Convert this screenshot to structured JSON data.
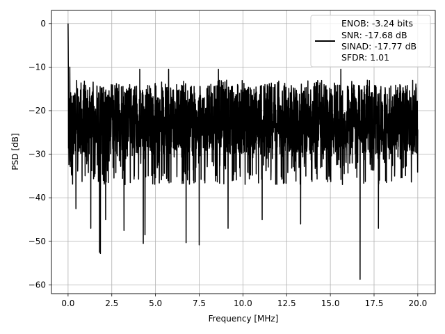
{
  "chart_data": {
    "type": "line",
    "title": "",
    "xlabel": "Frequency [MHz]",
    "ylabel": "PSD [dB]",
    "xlim": [
      -0.95,
      21.0
    ],
    "ylim": [
      -62.0,
      3.0
    ],
    "xticks": [
      0.0,
      2.5,
      5.0,
      7.5,
      10.0,
      12.5,
      15.0,
      17.5,
      20.0
    ],
    "xtick_labels": [
      "0.0",
      "2.5",
      "5.0",
      "7.5",
      "10.0",
      "12.5",
      "15.0",
      "17.5",
      "20.0"
    ],
    "yticks": [
      0,
      -10,
      -20,
      -30,
      -40,
      -50,
      -60
    ],
    "ytick_labels": [
      "0",
      "−10",
      "−20",
      "−30",
      "−40",
      "−50",
      "−60"
    ],
    "grid": true,
    "legend_position": "top-right",
    "legend_lines": [
      "ENOB: -3.24 bits",
      "SNR: -17.68 dB",
      "SINAD: -17.77 dB",
      "SFDR: 1.01"
    ],
    "series": [
      {
        "color": "#000000",
        "x_range": [
          0.0,
          20.0
        ],
        "noise_floor_db": [
          -37,
          -13
        ],
        "peaks": [
          {
            "x": 0.0,
            "y": 0.0
          },
          {
            "x": 0.1,
            "y": -10.0
          },
          {
            "x": 1.8,
            "y": -52.5
          },
          {
            "x": 1.85,
            "y": -52.8
          },
          {
            "x": 4.3,
            "y": -50.5
          },
          {
            "x": 6.75,
            "y": -50.3
          },
          {
            "x": 7.5,
            "y": -50.8
          },
          {
            "x": 16.7,
            "y": -58.7
          },
          {
            "x": 0.45,
            "y": -42.5
          },
          {
            "x": 1.3,
            "y": -47.0
          },
          {
            "x": 2.15,
            "y": -45.0
          },
          {
            "x": 3.2,
            "y": -47.5
          },
          {
            "x": 4.4,
            "y": -48.5
          },
          {
            "x": 9.15,
            "y": -47.0
          },
          {
            "x": 11.1,
            "y": -45.0
          },
          {
            "x": 13.3,
            "y": -46.0
          },
          {
            "x": 17.75,
            "y": -47.0
          },
          {
            "x": 4.1,
            "y": -10.5
          },
          {
            "x": 5.75,
            "y": -10.5
          },
          {
            "x": 8.6,
            "y": -10.5
          },
          {
            "x": 15.6,
            "y": -10.5
          }
        ]
      }
    ]
  }
}
